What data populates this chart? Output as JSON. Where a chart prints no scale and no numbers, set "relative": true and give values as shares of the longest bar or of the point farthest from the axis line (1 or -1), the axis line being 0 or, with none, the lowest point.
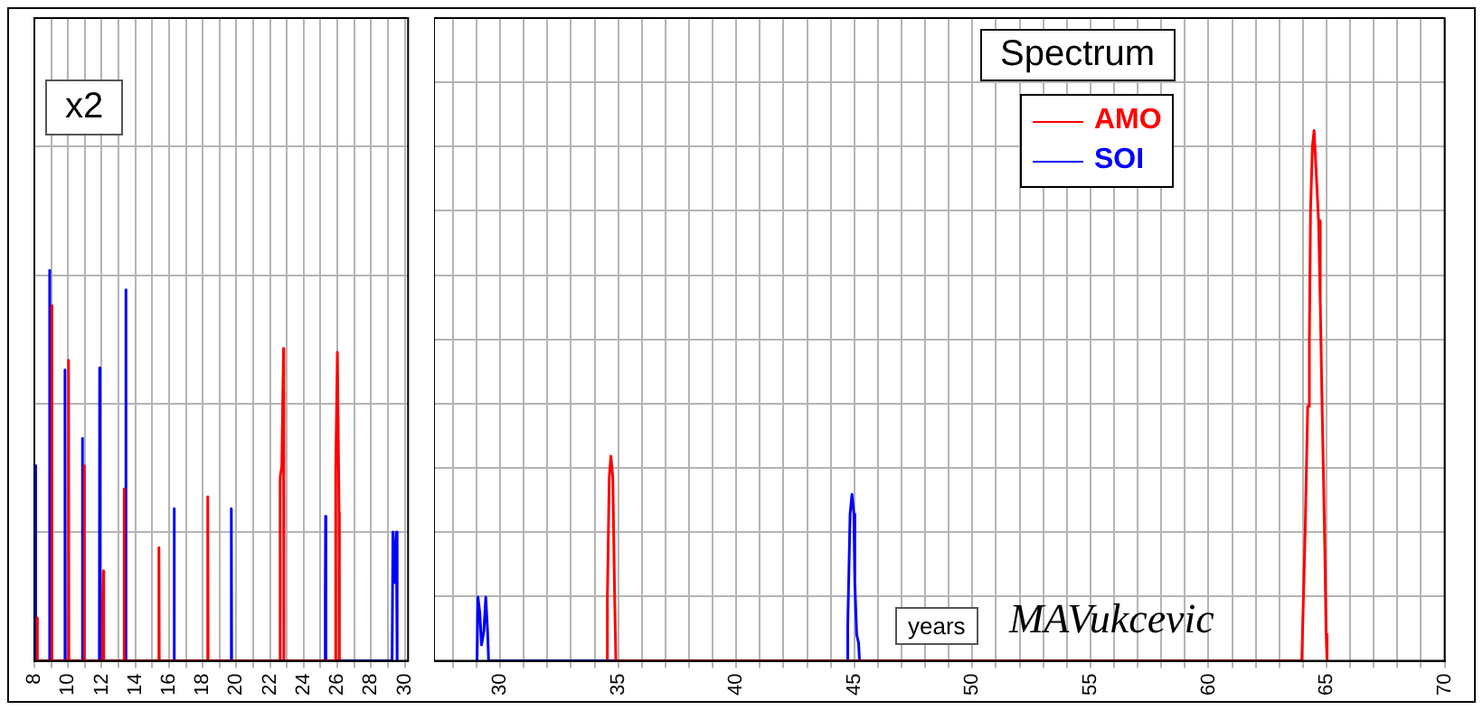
{
  "chart_data": [
    {
      "type": "line",
      "relative": true,
      "annotations": [
        "x2"
      ],
      "xlim": [
        8,
        30.2
      ],
      "xticks": [
        8,
        {
          "value": 9,
          "label": null
        },
        10,
        {
          "value": 11,
          "label": null
        },
        12,
        {
          "value": 13,
          "label": null
        },
        14,
        {
          "value": 15,
          "label": null
        },
        16,
        {
          "value": 17,
          "label": null
        },
        18,
        {
          "value": 19,
          "label": null
        },
        20,
        {
          "value": 21,
          "label": null
        },
        22,
        {
          "value": 23,
          "label": null
        },
        24,
        {
          "value": 25,
          "label": null
        },
        26,
        {
          "value": 27,
          "label": null
        },
        28,
        {
          "value": 29,
          "label": null
        },
        30
      ],
      "grid": true,
      "tick_labels": "x",
      "marker": "none",
      "line_style": "solid",
      "series": [
        {
          "color": "#ff0000",
          "x": [
            8.15,
            8.17,
            8.19,
            9.01,
            9.03,
            9.05,
            10.01,
            10.03,
            10.05,
            10.94,
            10.96,
            10.98,
            12.04,
            12.06,
            12.1,
            12.12,
            13.31,
            13.33,
            13.35,
            15.38,
            15.4,
            15.42,
            18.28,
            18.3,
            18.32,
            22.58,
            22.6,
            22.7,
            22.8,
            22.82,
            25.88,
            25.9,
            26.0,
            26.1,
            26.12
          ],
          "values": [
            0,
            0.11,
            0,
            0,
            0.91,
            0,
            0,
            0.77,
            0,
            0,
            0.5,
            0,
            0,
            0.16,
            0.23,
            0,
            0,
            0.44,
            0,
            0,
            0.29,
            0,
            0,
            0.42,
            0,
            0,
            0.47,
            0.5,
            0.8,
            0,
            0,
            0.48,
            0.79,
            0.38,
            0
          ]
        },
        {
          "color": "#0000ff",
          "x": [
            8.05,
            8.07,
            8.09,
            8.88,
            8.9,
            8.92,
            9.8,
            9.82,
            9.84,
            10.83,
            10.85,
            10.87,
            11.86,
            11.88,
            11.9,
            13.41,
            13.43,
            13.45,
            16.28,
            16.3,
            16.32,
            19.68,
            19.7,
            19.72,
            25.25,
            25.28,
            25.3,
            25.32,
            29.25,
            29.3,
            29.4,
            29.5,
            29.55
          ],
          "values": [
            0,
            0.5,
            0,
            0,
            1,
            0,
            0,
            0.745,
            0,
            0,
            0.57,
            0,
            0,
            0.75,
            0,
            0,
            0.95,
            0,
            0,
            0.39,
            0,
            0,
            0.39,
            0,
            0,
            0.17,
            0.37,
            0,
            0,
            0.33,
            0.2,
            0.33,
            0
          ]
        }
      ]
    },
    {
      "type": "line",
      "relative": true,
      "xlabel": "years",
      "legend_title": "Spectrum",
      "legend": "top right",
      "annotations": [
        "MAVukcevic"
      ],
      "xlim": [
        27.2,
        70
      ],
      "xticks": [
        {
          "value": 28,
          "label": null
        },
        {
          "value": 29,
          "label": null
        },
        30,
        {
          "value": 31,
          "label": null
        },
        {
          "value": 32,
          "label": null
        },
        {
          "value": 33,
          "label": null
        },
        {
          "value": 34,
          "label": null
        },
        35,
        {
          "value": 36,
          "label": null
        },
        {
          "value": 37,
          "label": null
        },
        {
          "value": 38,
          "label": null
        },
        {
          "value": 39,
          "label": null
        },
        40,
        {
          "value": 41,
          "label": null
        },
        {
          "value": 42,
          "label": null
        },
        {
          "value": 43,
          "label": null
        },
        {
          "value": 44,
          "label": null
        },
        45,
        {
          "value": 46,
          "label": null
        },
        {
          "value": 47,
          "label": null
        },
        {
          "value": 48,
          "label": null
        },
        {
          "value": 49,
          "label": null
        },
        50,
        {
          "value": 51,
          "label": null
        },
        {
          "value": 52,
          "label": null
        },
        {
          "value": 53,
          "label": null
        },
        {
          "value": 54,
          "label": null
        },
        55,
        {
          "value": 56,
          "label": null
        },
        {
          "value": 57,
          "label": null
        },
        {
          "value": 58,
          "label": null
        },
        {
          "value": 59,
          "label": null
        },
        60,
        {
          "value": 61,
          "label": null
        },
        {
          "value": 62,
          "label": null
        },
        {
          "value": 63,
          "label": null
        },
        {
          "value": 64,
          "label": null
        },
        65,
        {
          "value": 66,
          "label": null
        },
        {
          "value": 67,
          "label": null
        },
        {
          "value": 68,
          "label": null
        },
        {
          "value": 69,
          "label": null
        },
        70
      ],
      "grid": true,
      "tick_labels": "x",
      "marker": "none",
      "line_style": "solid",
      "series": [
        {
          "name": "AMO",
          "color": "#ff0000",
          "x": [
            34.5,
            34.54,
            34.62,
            34.69,
            34.77,
            34.85,
            34.9,
            63.95,
            63.99,
            64.09,
            64.2,
            64.27,
            64.32,
            64.4,
            64.47,
            64.55,
            64.66,
            64.73,
            64.81,
            64.91,
            64.98,
            65.02
          ],
          "values": [
            0,
            0.118,
            0.346,
            0.386,
            0.346,
            0.118,
            0,
            0,
            0.07,
            0.24,
            0.48,
            0.6,
            0.85,
            0.97,
            1,
            0.93,
            0.83,
            0.68,
            0.48,
            0.25,
            0.05,
            0
          ]
        },
        {
          "name": "SOI",
          "color": "#0000ff",
          "x": [
            29.02,
            29.06,
            29.14,
            29.21,
            29.31,
            29.39,
            29.47,
            29.51,
            44.68,
            44.72,
            44.82,
            44.9,
            44.98,
            45.02,
            45.1,
            45.18,
            45.22
          ],
          "values": [
            0,
            0.12,
            0.09,
            0.03,
            0.056,
            0.12,
            0.053,
            0,
            0,
            0.065,
            0.277,
            0.314,
            0.277,
            0.147,
            0.049,
            0.034,
            0
          ]
        }
      ]
    }
  ]
}
